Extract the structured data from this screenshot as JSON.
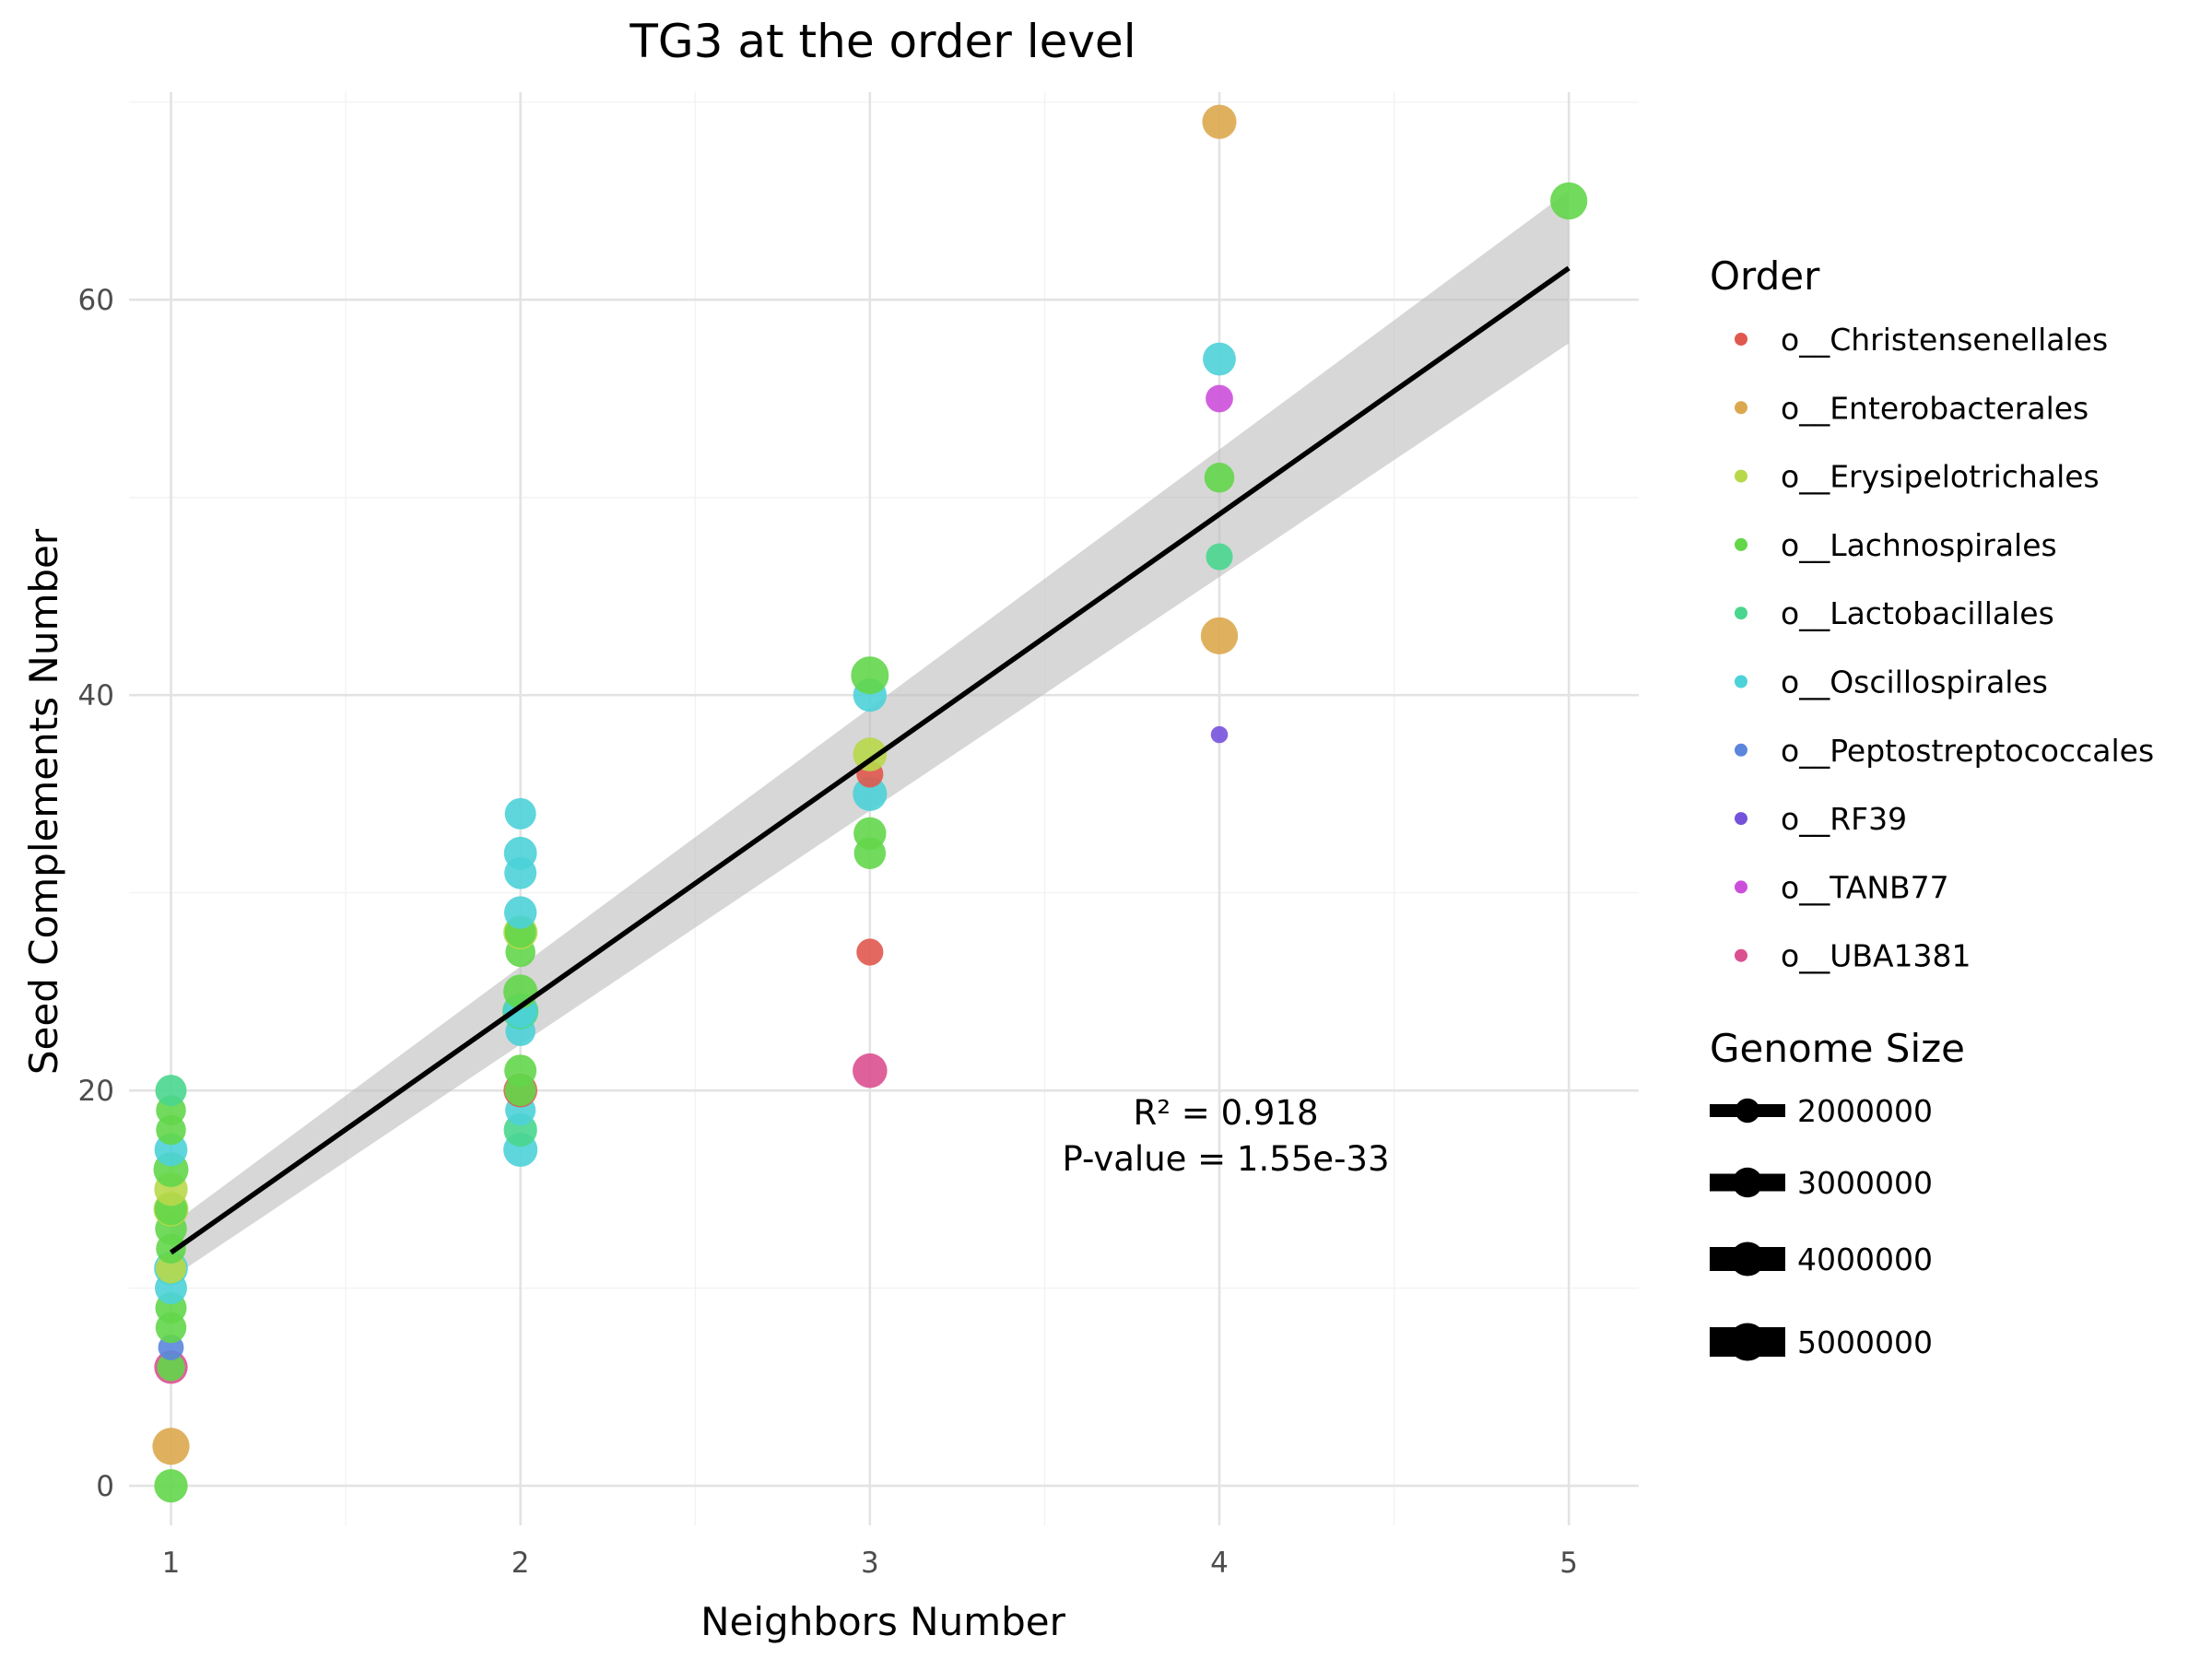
{
  "chart_data": {
    "type": "scatter",
    "title": "TG3 at the order level",
    "xlabel": "Neighbors Number",
    "ylabel": "Seed Complements Number",
    "xlim": [
      0.88,
      5.2
    ],
    "ylim": [
      -2,
      70.5
    ],
    "xticks": [
      1,
      2,
      3,
      4,
      5
    ],
    "yticks": [
      0,
      20,
      40,
      60
    ],
    "grid": true,
    "legend_position": "right",
    "color_legend": {
      "title": "Order",
      "entries": [
        {
          "name": "o__Christensenellales",
          "color": "#E0584E"
        },
        {
          "name": "o__Enterobacterales",
          "color": "#DBA84E"
        },
        {
          "name": "o__Erysipelotrichales",
          "color": "#B8D84A"
        },
        {
          "name": "o__Lachnospirales",
          "color": "#63D64A"
        },
        {
          "name": "o__Lactobacillales",
          "color": "#4AD68E"
        },
        {
          "name": "o__Oscillospirales",
          "color": "#4CD2D8"
        },
        {
          "name": "o__Peptostreptococcales",
          "color": "#5B86DB"
        },
        {
          "name": "o__RF39",
          "color": "#7552DB"
        },
        {
          "name": "o__TANB77",
          "color": "#CC4FDB"
        },
        {
          "name": "o__UBA1381",
          "color": "#DB5090"
        }
      ]
    },
    "size_legend": {
      "title": "Genome Size",
      "entries": [
        {
          "label": "2000000",
          "value": 2000000
        },
        {
          "label": "3000000",
          "value": 3000000
        },
        {
          "label": "4000000",
          "value": 4000000
        },
        {
          "label": "5000000",
          "value": 5000000
        }
      ]
    },
    "size_range": [
      1000000,
      5000000
    ],
    "regression": {
      "x": [
        1,
        5
      ],
      "y": [
        11.8,
        61.6
      ],
      "ci_lower": [
        10.5,
        57.8
      ],
      "ci_upper": [
        13.2,
        65.5
      ],
      "line_color": "#000000",
      "band_color": "#BEBEBE"
    },
    "annotations": [
      "R² = 0.918",
      "P-value = 1.55e-33"
    ],
    "points": [
      {
        "x": 1,
        "y": 0,
        "order": "o__Lachnospirales",
        "size": 3800000
      },
      {
        "x": 1,
        "y": 2,
        "order": "o__Enterobacterales",
        "size": 4800000
      },
      {
        "x": 1,
        "y": 6,
        "order": "o__UBA1381",
        "size": 3800000
      },
      {
        "x": 1,
        "y": 6,
        "order": "o__Lachnospirales",
        "size": 2600000
      },
      {
        "x": 1,
        "y": 7,
        "order": "o__Peptostreptococcales",
        "size": 2200000
      },
      {
        "x": 1,
        "y": 8,
        "order": "o__Lachnospirales",
        "size": 3200000
      },
      {
        "x": 1,
        "y": 9,
        "order": "o__Lachnospirales",
        "size": 3300000
      },
      {
        "x": 1,
        "y": 10,
        "order": "o__Oscillospirales",
        "size": 3500000
      },
      {
        "x": 1,
        "y": 11,
        "order": "o__Oscillospirales",
        "size": 3900000
      },
      {
        "x": 1,
        "y": 11,
        "order": "o__Erysipelotrichales",
        "size": 3100000
      },
      {
        "x": 1,
        "y": 12,
        "order": "o__Lachnospirales",
        "size": 3000000
      },
      {
        "x": 1,
        "y": 13,
        "order": "o__Lachnospirales",
        "size": 3400000
      },
      {
        "x": 1,
        "y": 14,
        "order": "o__Erysipelotrichales",
        "size": 4200000
      },
      {
        "x": 1,
        "y": 14,
        "order": "o__Lachnospirales",
        "size": 3600000
      },
      {
        "x": 1,
        "y": 15,
        "order": "o__Erysipelotrichales",
        "size": 3800000
      },
      {
        "x": 1,
        "y": 16,
        "order": "o__Lachnospirales",
        "size": 4200000
      },
      {
        "x": 1,
        "y": 17,
        "order": "o__Oscillospirales",
        "size": 3700000
      },
      {
        "x": 1,
        "y": 18,
        "order": "o__Lachnospirales",
        "size": 3000000
      },
      {
        "x": 1,
        "y": 19,
        "order": "o__Lachnospirales",
        "size": 3000000
      },
      {
        "x": 1,
        "y": 20,
        "order": "o__Lactobacillales",
        "size": 3300000
      },
      {
        "x": 2,
        "y": 17,
        "order": "o__Oscillospirales",
        "size": 4000000
      },
      {
        "x": 2,
        "y": 18,
        "order": "o__Lactobacillales",
        "size": 3800000
      },
      {
        "x": 2,
        "y": 19,
        "order": "o__Oscillospirales",
        "size": 3100000
      },
      {
        "x": 2,
        "y": 20,
        "order": "o__Christensenellales",
        "size": 3900000
      },
      {
        "x": 2,
        "y": 20,
        "order": "o__Lachnospirales",
        "size": 3300000
      },
      {
        "x": 2,
        "y": 21,
        "order": "o__Lachnospirales",
        "size": 3500000
      },
      {
        "x": 2,
        "y": 23,
        "order": "o__Oscillospirales",
        "size": 3000000
      },
      {
        "x": 2,
        "y": 24,
        "order": "o__Lactobacillales",
        "size": 4500000
      },
      {
        "x": 2,
        "y": 24,
        "order": "o__Oscillospirales",
        "size": 3600000
      },
      {
        "x": 2,
        "y": 25,
        "order": "o__Lachnospirales",
        "size": 4000000
      },
      {
        "x": 2,
        "y": 27,
        "order": "o__Lachnospirales",
        "size": 3000000
      },
      {
        "x": 2,
        "y": 28,
        "order": "o__Erysipelotrichales",
        "size": 4000000
      },
      {
        "x": 2,
        "y": 28,
        "order": "o__Lachnospirales",
        "size": 3300000
      },
      {
        "x": 2,
        "y": 29,
        "order": "o__Oscillospirales",
        "size": 3600000
      },
      {
        "x": 2,
        "y": 31,
        "order": "o__Oscillospirales",
        "size": 3500000
      },
      {
        "x": 2,
        "y": 32,
        "order": "o__Oscillospirales",
        "size": 3700000
      },
      {
        "x": 2,
        "y": 34,
        "order": "o__Oscillospirales",
        "size": 3300000
      },
      {
        "x": 3,
        "y": 21,
        "order": "o__UBA1381",
        "size": 4100000
      },
      {
        "x": 3,
        "y": 27,
        "order": "o__Christensenellales",
        "size": 2400000
      },
      {
        "x": 3,
        "y": 32,
        "order": "o__Lachnospirales",
        "size": 3400000
      },
      {
        "x": 3,
        "y": 33,
        "order": "o__Lachnospirales",
        "size": 3600000
      },
      {
        "x": 3,
        "y": 35,
        "order": "o__Oscillospirales",
        "size": 4000000
      },
      {
        "x": 3,
        "y": 36,
        "order": "o__Christensenellales",
        "size": 2400000
      },
      {
        "x": 3,
        "y": 37,
        "order": "o__Erysipelotrichales",
        "size": 3900000
      },
      {
        "x": 3,
        "y": 40,
        "order": "o__Oscillospirales",
        "size": 3800000
      },
      {
        "x": 3,
        "y": 41,
        "order": "o__Lachnospirales",
        "size": 5000000
      },
      {
        "x": 4,
        "y": 38,
        "order": "o__RF39",
        "size": 1200000
      },
      {
        "x": 4,
        "y": 43,
        "order": "o__Enterobacterales",
        "size": 4800000
      },
      {
        "x": 4,
        "y": 47,
        "order": "o__Lactobacillales",
        "size": 2400000
      },
      {
        "x": 4,
        "y": 51,
        "order": "o__Lachnospirales",
        "size": 3000000
      },
      {
        "x": 4,
        "y": 55,
        "order": "o__TANB77",
        "size": 2500000
      },
      {
        "x": 4,
        "y": 57,
        "order": "o__Oscillospirales",
        "size": 3700000
      },
      {
        "x": 4,
        "y": 69,
        "order": "o__Enterobacterales",
        "size": 4000000
      },
      {
        "x": 5,
        "y": 65,
        "order": "o__Lachnospirales",
        "size": 4800000
      }
    ]
  }
}
